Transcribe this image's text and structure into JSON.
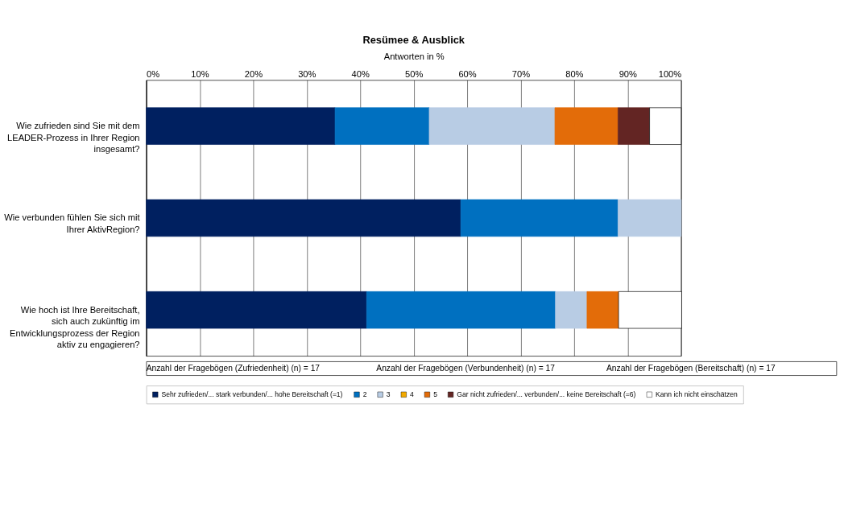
{
  "chart_data": {
    "type": "bar",
    "orientation": "horizontal",
    "stacked": true,
    "title": "Resümee & Ausblick",
    "xlabel": "Antworten in %",
    "categories": [
      "Wie zufrieden sind Sie mit dem\nLEADER-Prozess in Ihrer Region\ninsgesamt?",
      "Wie verbunden fühlen Sie sich mit\nIhrer AktivRegion?",
      "Wie hoch ist Ihre Bereitschaft,\nsich auch zukünftig im\nEntwicklungsprozess der Region\naktiv zu engagieren?"
    ],
    "series": [
      {
        "name": "Sehr zufrieden/... stark verbunden/... hohe Bereitschaft (=1)",
        "color": "#002060",
        "values": [
          35.3,
          58.8,
          41.2
        ]
      },
      {
        "name": "2",
        "color": "#0070c0",
        "values": [
          17.6,
          29.4,
          35.3
        ]
      },
      {
        "name": "3",
        "color": "#b8cce4",
        "values": [
          23.5,
          11.8,
          5.9
        ]
      },
      {
        "name": "4",
        "color": "#f2a900",
        "values": [
          0,
          0,
          0
        ]
      },
      {
        "name": "5",
        "color": "#e36c09",
        "values": [
          11.8,
          0,
          5.9
        ]
      },
      {
        "name": "Gar nicht zufrieden/... verbunden/... keine Bereitschaft (=6)",
        "color": "#632523",
        "values": [
          5.9,
          0,
          0
        ]
      },
      {
        "name": "Kann ich nicht einschätzen",
        "color": "#ffffff",
        "values": [
          5.9,
          0,
          11.8
        ]
      }
    ],
    "xlim": [
      0,
      100
    ],
    "xticks": [
      {
        "value": 0,
        "label": "0%"
      },
      {
        "value": 10,
        "label": "10%"
      },
      {
        "value": 20,
        "label": "20%"
      },
      {
        "value": 30,
        "label": "30%"
      },
      {
        "value": 40,
        "label": "40%"
      },
      {
        "value": 50,
        "label": "50%"
      },
      {
        "value": 60,
        "label": "60%"
      },
      {
        "value": 70,
        "label": "70%"
      },
      {
        "value": 80,
        "label": "80%"
      },
      {
        "value": 90,
        "label": "90%"
      },
      {
        "value": 100,
        "label": "100%"
      }
    ],
    "grid": "x",
    "legend": "bottom",
    "annotations": [
      "Anzahl der Fragebögen (Zufriedenheit) (n) = 17",
      "Anzahl der Fragebögen (Verbundenheit) (n) = 17",
      "Anzahl der Fragebögen (Bereitschaft) (n) = 17"
    ]
  }
}
